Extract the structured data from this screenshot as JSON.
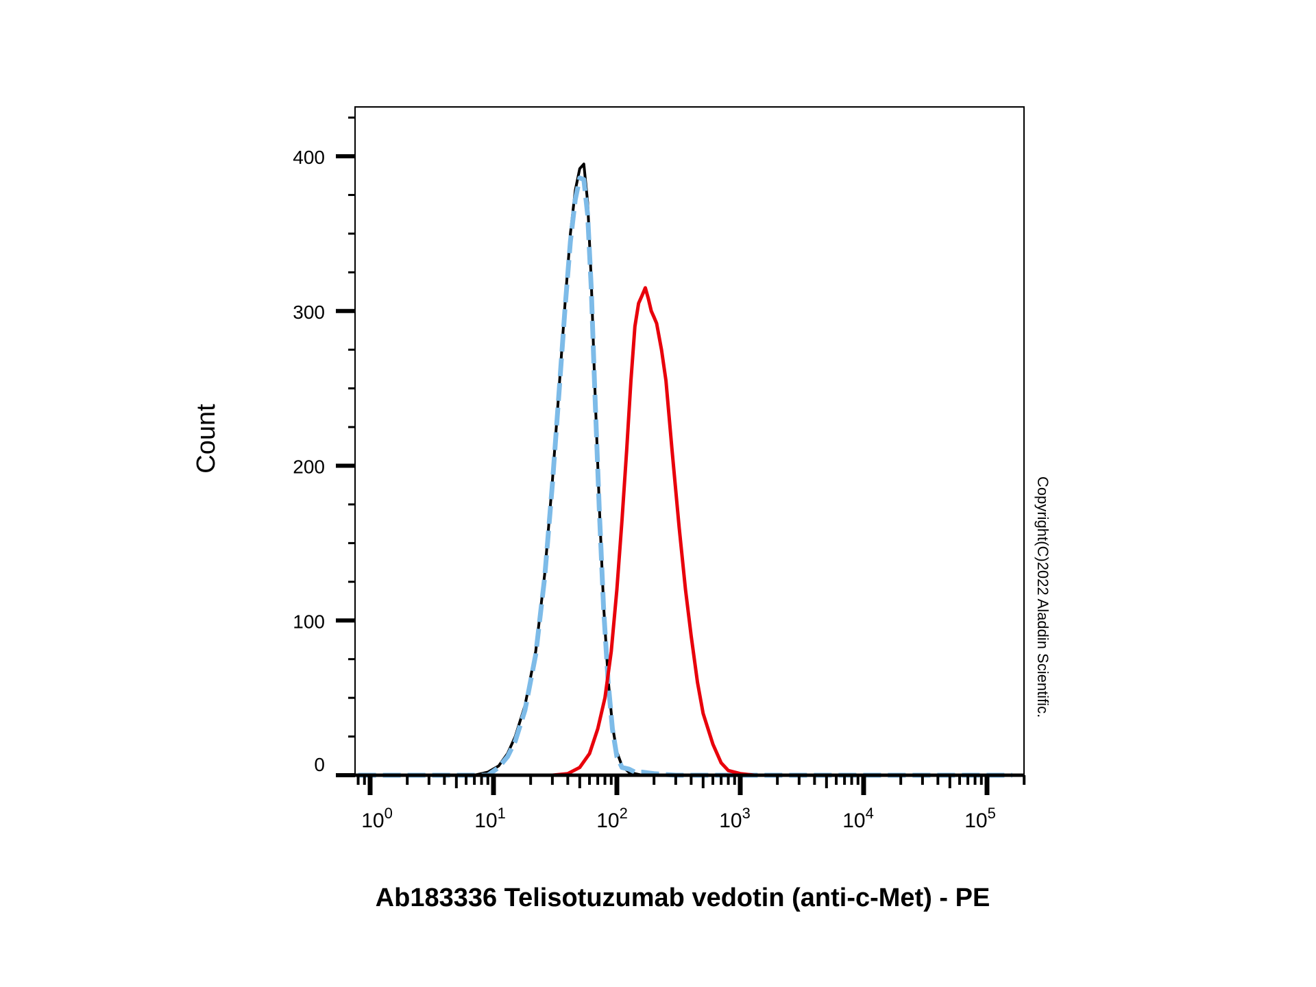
{
  "chart_data": {
    "type": "line",
    "title": "",
    "xlabel": "Ab183336 Telisotuzumab vedotin (anti-c-Met) - PE",
    "ylabel": "Count",
    "x_scale": "log",
    "xlim": [
      0.8,
      160000
    ],
    "ylim": [
      0,
      430
    ],
    "grid": false,
    "legend": "none",
    "x_ticks": [
      {
        "base": "10",
        "exp": "0",
        "value": 1
      },
      {
        "base": "10",
        "exp": "1",
        "value": 10
      },
      {
        "base": "10",
        "exp": "2",
        "value": 100
      },
      {
        "base": "10",
        "exp": "3",
        "value": 1000
      },
      {
        "base": "10",
        "exp": "4",
        "value": 10000
      },
      {
        "base": "10",
        "exp": "5",
        "value": 100000
      }
    ],
    "y_ticks": [
      {
        "label": "0",
        "value": 0
      },
      {
        "label": "100",
        "value": 100
      },
      {
        "label": "200",
        "value": 200
      },
      {
        "label": "300",
        "value": 300
      },
      {
        "label": "400",
        "value": 400
      }
    ],
    "series": [
      {
        "color": "#000000",
        "style": "solid",
        "x": [
          0.8,
          7,
          9,
          11,
          13,
          15,
          18,
          22,
          26,
          30,
          34,
          38,
          42,
          46,
          50,
          54,
          58,
          62,
          66,
          72,
          78,
          85,
          92,
          100,
          110,
          125,
          140,
          160,
          200,
          300,
          160000
        ],
        "y": [
          0,
          0,
          2,
          6,
          14,
          25,
          45,
          80,
          130,
          190,
          250,
          305,
          350,
          378,
          392,
          395,
          370,
          320,
          255,
          175,
          110,
          62,
          32,
          15,
          6,
          2,
          1,
          0,
          0,
          0,
          0
        ]
      },
      {
        "color": "#7dbbe8",
        "style": "dashed",
        "x": [
          0.8,
          9,
          11,
          13,
          15,
          18,
          22,
          26,
          30,
          34,
          38,
          42,
          46,
          50,
          54,
          58,
          62,
          66,
          72,
          78,
          85,
          92,
          100,
          110,
          125,
          140,
          160,
          200,
          300,
          160000
        ],
        "y": [
          0,
          0,
          5,
          12,
          22,
          42,
          78,
          128,
          188,
          248,
          302,
          345,
          372,
          386,
          385,
          362,
          315,
          252,
          172,
          108,
          60,
          30,
          12,
          5,
          4,
          2,
          2,
          1,
          0,
          0
        ]
      },
      {
        "color": "#e8000b",
        "style": "solid",
        "x": [
          0.8,
          30,
          40,
          50,
          60,
          70,
          80,
          90,
          100,
          110,
          120,
          130,
          140,
          150,
          160,
          170,
          180,
          190,
          200,
          210,
          230,
          250,
          280,
          320,
          360,
          400,
          450,
          500,
          600,
          700,
          800,
          1000,
          1300,
          160000
        ],
        "y": [
          0,
          0,
          1,
          5,
          14,
          30,
          50,
          80,
          120,
          165,
          210,
          255,
          290,
          305,
          310,
          315,
          308,
          300,
          296,
          292,
          275,
          255,
          210,
          160,
          120,
          90,
          60,
          40,
          20,
          8,
          3,
          1,
          0,
          0
        ]
      }
    ]
  },
  "watermark": "Copyright(C)2022 Aladdin Scientific."
}
